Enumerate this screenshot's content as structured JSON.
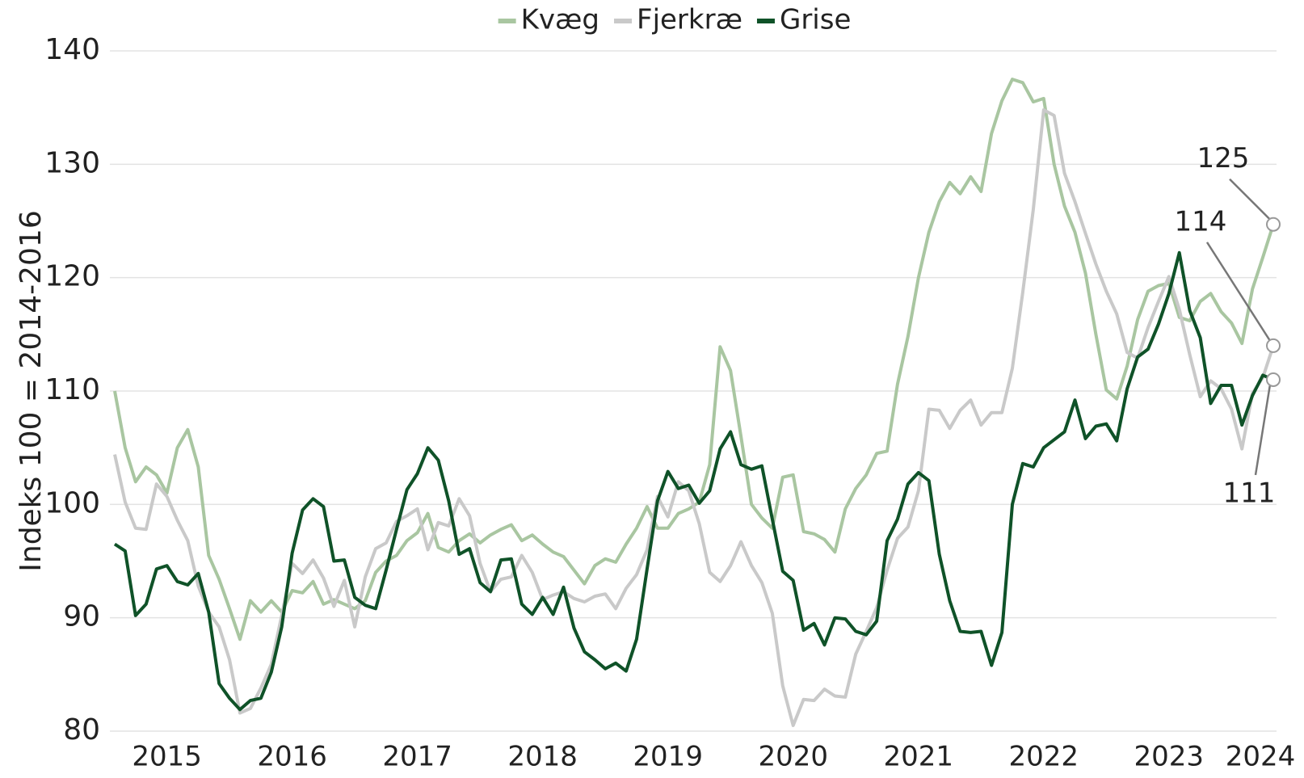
{
  "chart_data": {
    "type": "line",
    "y_label": "Indeks 100 = 2014-2016",
    "categories": [
      null,
      null,
      null,
      null,
      null,
      "2015",
      null,
      null,
      null,
      null,
      null,
      null,
      null,
      null,
      null,
      null,
      null,
      "2016",
      null,
      null,
      null,
      null,
      null,
      null,
      null,
      null,
      null,
      null,
      null,
      "2017",
      null,
      null,
      null,
      null,
      null,
      null,
      null,
      null,
      null,
      null,
      null,
      "2018",
      null,
      null,
      null,
      null,
      null,
      null,
      null,
      null,
      null,
      null,
      null,
      "2019",
      null,
      null,
      null,
      null,
      null,
      null,
      null,
      null,
      null,
      null,
      null,
      "2020",
      null,
      null,
      null,
      null,
      null,
      null,
      null,
      null,
      null,
      null,
      null,
      "2021",
      null,
      null,
      null,
      null,
      null,
      null,
      null,
      null,
      null,
      null,
      null,
      "2022",
      null,
      null,
      null,
      null,
      null,
      null,
      null,
      null,
      null,
      null,
      null,
      "2023",
      null,
      null,
      null,
      null,
      null,
      null,
      null,
      null,
      "2024",
      null
    ],
    "ylim": [
      80,
      140
    ],
    "yticks": [
      80,
      90,
      100,
      110,
      120,
      130,
      140
    ],
    "grid": true,
    "legend": "top",
    "series": [
      {
        "name": "Kvæg",
        "color": "#a9c6a1",
        "values": [
          110,
          105,
          102,
          103.3,
          102.6,
          101,
          105,
          106.6,
          103.3,
          95.5,
          93.4,
          90.8,
          88.1,
          91.5,
          90.5,
          91.5,
          90.5,
          92.4,
          92.2,
          93.2,
          91.2,
          91.6,
          91.2,
          90.8,
          91.5,
          94,
          95,
          95.5,
          96.8,
          97.5,
          99.2,
          96.2,
          95.8,
          96.8,
          97.4,
          96.6,
          97.3,
          97.8,
          98.2,
          96.8,
          97.3,
          96.5,
          95.8,
          95.4,
          94.2,
          93,
          94.6,
          95.2,
          94.9,
          96.5,
          97.9,
          99.8,
          97.9,
          97.9,
          99.2,
          99.6,
          100.2,
          103.5,
          113.9,
          111.8,
          106,
          100,
          98.8,
          97.9,
          102.4,
          102.6,
          97.6,
          97.4,
          96.9,
          95.8,
          99.6,
          101.4,
          102.6,
          104.5,
          104.7,
          110.6,
          114.8,
          120,
          124,
          126.7,
          128.4,
          127.4,
          128.9,
          127.6,
          132.7,
          135.6,
          137.5,
          137.2,
          135.5,
          135.8,
          130,
          126.3,
          124,
          120.4,
          115,
          110.1,
          109.3,
          112.2,
          116.3,
          118.8,
          119.3,
          119.5,
          116.5,
          116.2,
          117.9,
          118.6,
          117,
          116,
          114.2,
          119,
          121.8,
          124.7
        ],
        "value_labels": [
          null,
          null,
          null,
          null,
          null,
          null,
          null,
          null,
          null,
          null,
          null,
          null,
          null,
          null,
          null,
          null,
          null,
          null,
          null,
          null,
          null,
          null,
          null,
          null,
          null,
          null,
          null,
          null,
          null,
          null,
          null,
          null,
          null,
          null,
          null,
          null,
          null,
          null,
          null,
          null,
          null,
          null,
          null,
          null,
          null,
          null,
          null,
          null,
          null,
          null,
          null,
          null,
          null,
          null,
          null,
          null,
          null,
          null,
          null,
          null,
          null,
          null,
          null,
          null,
          null,
          null,
          null,
          null,
          null,
          null,
          null,
          null,
          null,
          null,
          null,
          null,
          null,
          null,
          null,
          null,
          null,
          null,
          null,
          null,
          null,
          null,
          null,
          null,
          null,
          null,
          null,
          null,
          null,
          null,
          null,
          null,
          null,
          null,
          null,
          null,
          null,
          null,
          null,
          null,
          null,
          null,
          null,
          null,
          null,
          null,
          null,
          "125"
        ]
      },
      {
        "name": "Fjerkræ",
        "color": "#c9c9c9",
        "values": [
          104.4,
          100.2,
          97.9,
          97.8,
          101.8,
          100.7,
          98.6,
          96.8,
          92.8,
          90.5,
          89.2,
          86.3,
          81.6,
          82,
          83.8,
          85.9,
          90.2,
          94.8,
          93.9,
          95.1,
          93.5,
          91,
          93.3,
          89.2,
          93.6,
          96.1,
          96.6,
          98.5,
          99,
          99.6,
          96,
          98.4,
          98.1,
          100.5,
          99,
          94.8,
          92.3,
          93.4,
          93.6,
          95.5,
          94,
          91.6,
          92,
          92.3,
          91.7,
          91.4,
          91.9,
          92.1,
          90.8,
          92.6,
          93.8,
          96,
          100.7,
          98.9,
          102,
          101.2,
          98.3,
          94,
          93.2,
          94.6,
          96.7,
          94.6,
          93.1,
          90.4,
          84,
          80.5,
          82.8,
          82.7,
          83.7,
          83.1,
          83,
          86.8,
          88.8,
          90.9,
          94.2,
          97,
          98,
          101.2,
          108.4,
          108.3,
          106.7,
          108.3,
          109.2,
          107,
          108.1,
          108.1,
          112,
          118.7,
          126,
          134.8,
          134.3,
          129.2,
          126.7,
          123.9,
          121.2,
          118.8,
          116.8,
          113.4,
          112.9,
          115.6,
          117.9,
          120.1,
          117.2,
          113.2,
          109.5,
          110.9,
          110.2,
          108.4,
          104.9,
          109.8,
          111.2,
          114
        ],
        "value_labels": [
          null,
          null,
          null,
          null,
          null,
          null,
          null,
          null,
          null,
          null,
          null,
          null,
          null,
          null,
          null,
          null,
          null,
          null,
          null,
          null,
          null,
          null,
          null,
          null,
          null,
          null,
          null,
          null,
          null,
          null,
          null,
          null,
          null,
          null,
          null,
          null,
          null,
          null,
          null,
          null,
          null,
          null,
          null,
          null,
          null,
          null,
          null,
          null,
          null,
          null,
          null,
          null,
          null,
          null,
          null,
          null,
          null,
          null,
          null,
          null,
          null,
          null,
          null,
          null,
          null,
          null,
          null,
          null,
          null,
          null,
          null,
          null,
          null,
          null,
          null,
          null,
          null,
          null,
          null,
          null,
          null,
          null,
          null,
          null,
          null,
          null,
          null,
          null,
          null,
          null,
          null,
          null,
          null,
          null,
          null,
          null,
          null,
          null,
          null,
          null,
          null,
          null,
          null,
          null,
          null,
          null,
          null,
          null,
          null,
          null,
          null,
          "114"
        ]
      },
      {
        "name": "Grise",
        "color": "#0f5228",
        "values": [
          96.5,
          95.9,
          90.2,
          91.2,
          94.3,
          94.6,
          93.2,
          92.9,
          93.9,
          90.5,
          84.2,
          82.9,
          81.9,
          82.7,
          82.9,
          85.2,
          89.2,
          95.7,
          99.5,
          100.5,
          99.8,
          95,
          95.1,
          91.8,
          91.1,
          90.8,
          94.2,
          97.8,
          101.3,
          102.7,
          105,
          103.9,
          100.3,
          95.6,
          96.1,
          93.1,
          92.3,
          95.1,
          95.2,
          91.2,
          90.3,
          91.8,
          90.3,
          92.7,
          89.1,
          87,
          86.3,
          85.5,
          86,
          85.3,
          88.1,
          94.3,
          100.3,
          102.9,
          101.4,
          101.7,
          100.1,
          101.2,
          104.9,
          106.4,
          103.5,
          103.1,
          103.4,
          98.7,
          94.1,
          93.3,
          88.9,
          89.5,
          87.6,
          90,
          89.9,
          88.8,
          88.5,
          89.7,
          96.8,
          98.7,
          101.8,
          102.8,
          102.1,
          95.6,
          91.5,
          88.8,
          88.7,
          88.8,
          85.8,
          88.7,
          100,
          103.6,
          103.3,
          105,
          105.7,
          106.4,
          109.2,
          105.8,
          106.9,
          107.1,
          105.6,
          110.2,
          113,
          113.7,
          115.9,
          118.6,
          122.2,
          117.1,
          114.7,
          108.9,
          110.5,
          110.5,
          107,
          109.6,
          111.4,
          111
        ],
        "value_labels": [
          null,
          null,
          null,
          null,
          null,
          null,
          null,
          null,
          null,
          null,
          null,
          null,
          null,
          null,
          null,
          null,
          null,
          null,
          null,
          null,
          null,
          null,
          null,
          null,
          null,
          null,
          null,
          null,
          null,
          null,
          null,
          null,
          null,
          null,
          null,
          null,
          null,
          null,
          null,
          null,
          null,
          null,
          null,
          null,
          null,
          null,
          null,
          null,
          null,
          null,
          null,
          null,
          null,
          null,
          null,
          null,
          null,
          null,
          null,
          null,
          null,
          null,
          null,
          null,
          null,
          null,
          null,
          null,
          null,
          null,
          null,
          null,
          null,
          null,
          null,
          null,
          null,
          null,
          null,
          null,
          null,
          null,
          null,
          null,
          null,
          null,
          null,
          null,
          null,
          null,
          null,
          null,
          null,
          null,
          null,
          null,
          null,
          null,
          null,
          null,
          null,
          null,
          null,
          null,
          null,
          null,
          null,
          null,
          null,
          null,
          null,
          "111"
        ]
      }
    ]
  }
}
